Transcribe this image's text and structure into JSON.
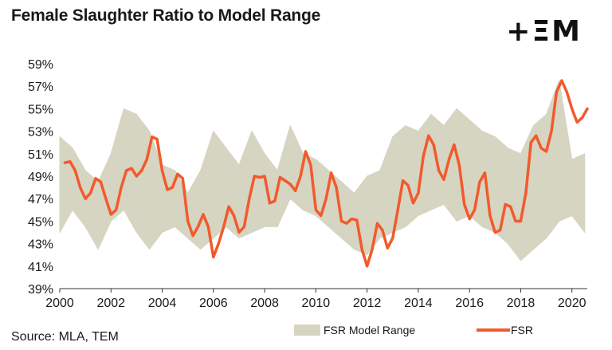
{
  "title": "Female Slaughter Ratio to Model Range",
  "logo_text": "+ΞM",
  "source": "Source: MLA, TEM",
  "colors": {
    "band": "#d6d5c2",
    "line": "#f25a2c",
    "axis": "#333333"
  },
  "chart_data": {
    "type": "line",
    "title": "Female Slaughter Ratio to Model Range",
    "xlabel": "",
    "ylabel": "",
    "xlim": [
      2000,
      2020.6
    ],
    "ylim": [
      39,
      59
    ],
    "x_ticks": [
      2000,
      2002,
      2004,
      2006,
      2008,
      2010,
      2012,
      2014,
      2016,
      2018,
      2020
    ],
    "x_tick_labels": [
      "2000",
      "2002",
      "2004",
      "2006",
      "2008",
      "2010",
      "2012",
      "2014",
      "2016",
      "2018",
      "2020"
    ],
    "y_ticks": [
      39,
      41,
      43,
      45,
      47,
      49,
      51,
      53,
      55,
      57,
      59
    ],
    "y_tick_labels": [
      "39%",
      "41%",
      "43%",
      "45%",
      "47%",
      "49%",
      "51%",
      "53%",
      "55%",
      "57%",
      "59%"
    ],
    "grid": false,
    "legend": {
      "placement": "bottom",
      "entries": [
        "FSR Model Range",
        "FSR"
      ]
    },
    "band": {
      "name": "FSR Model Range",
      "x": [
        2000.0,
        2000.5,
        2001.0,
        2001.5,
        2002.0,
        2002.5,
        2003.0,
        2003.5,
        2004.0,
        2004.5,
        2005.0,
        2005.5,
        2006.0,
        2006.5,
        2007.0,
        2007.5,
        2008.0,
        2008.5,
        2009.0,
        2009.5,
        2010.0,
        2010.5,
        2011.0,
        2011.5,
        2012.0,
        2012.5,
        2013.0,
        2013.5,
        2014.0,
        2014.5,
        2015.0,
        2015.5,
        2016.0,
        2016.5,
        2017.0,
        2017.5,
        2018.0,
        2018.5,
        2019.0,
        2019.5,
        2020.0,
        2020.5
      ],
      "upper": [
        52.5,
        51.5,
        49.5,
        48.5,
        51.0,
        55.0,
        54.5,
        53.0,
        50.0,
        49.5,
        47.5,
        49.5,
        53.0,
        51.5,
        50.0,
        53.0,
        51.0,
        49.5,
        53.5,
        51.0,
        50.5,
        49.5,
        48.5,
        47.5,
        49.0,
        49.5,
        52.5,
        53.5,
        53.0,
        54.5,
        53.5,
        55.0,
        54.0,
        53.0,
        52.5,
        51.5,
        51.0,
        53.5,
        54.5,
        57.5,
        50.5,
        51.0
      ],
      "lower": [
        44.0,
        46.0,
        44.5,
        42.5,
        45.0,
        46.0,
        44.0,
        42.5,
        44.0,
        44.5,
        43.5,
        42.5,
        43.5,
        44.5,
        43.5,
        44.0,
        44.5,
        44.5,
        47.0,
        46.0,
        45.5,
        44.5,
        43.5,
        42.5,
        42.0,
        43.5,
        44.0,
        44.5,
        45.5,
        46.0,
        46.5,
        45.0,
        45.5,
        44.5,
        44.0,
        43.0,
        41.5,
        42.5,
        43.5,
        45.0,
        45.5,
        44.0
      ]
    },
    "series": [
      {
        "name": "FSR",
        "x": [
          2000.2,
          2000.4,
          2000.6,
          2000.8,
          2001.0,
          2001.2,
          2001.4,
          2001.6,
          2001.8,
          2002.0,
          2002.2,
          2002.4,
          2002.6,
          2002.8,
          2003.0,
          2003.2,
          2003.4,
          2003.6,
          2003.8,
          2004.0,
          2004.2,
          2004.4,
          2004.6,
          2004.8,
          2005.0,
          2005.2,
          2005.4,
          2005.6,
          2005.8,
          2006.0,
          2006.2,
          2006.4,
          2006.6,
          2006.8,
          2007.0,
          2007.2,
          2007.4,
          2007.6,
          2007.8,
          2008.0,
          2008.2,
          2008.4,
          2008.6,
          2008.8,
          2009.0,
          2009.2,
          2009.4,
          2009.6,
          2009.8,
          2010.0,
          2010.2,
          2010.4,
          2010.6,
          2010.8,
          2011.0,
          2011.2,
          2011.4,
          2011.6,
          2011.8,
          2012.0,
          2012.2,
          2012.4,
          2012.6,
          2012.8,
          2013.0,
          2013.2,
          2013.4,
          2013.6,
          2013.8,
          2014.0,
          2014.2,
          2014.4,
          2014.6,
          2014.8,
          2015.0,
          2015.2,
          2015.4,
          2015.6,
          2015.8,
          2016.0,
          2016.2,
          2016.4,
          2016.6,
          2016.8,
          2017.0,
          2017.2,
          2017.4,
          2017.6,
          2017.8,
          2018.0,
          2018.2,
          2018.4,
          2018.6,
          2018.8,
          2019.0,
          2019.2,
          2019.4,
          2019.6,
          2019.8,
          2020.0,
          2020.2,
          2020.4,
          2020.6
        ],
        "values": [
          50.2,
          50.3,
          49.5,
          48.0,
          47.0,
          47.5,
          48.8,
          48.5,
          47.0,
          45.6,
          46.0,
          48.0,
          49.5,
          49.7,
          49.0,
          49.5,
          50.5,
          52.5,
          52.3,
          49.5,
          47.8,
          48.0,
          49.2,
          48.8,
          45.0,
          43.7,
          44.5,
          45.6,
          44.5,
          41.8,
          43.0,
          44.5,
          46.3,
          45.5,
          44.0,
          44.5,
          47.0,
          49.0,
          48.9,
          49.0,
          46.6,
          46.8,
          48.9,
          48.6,
          48.3,
          47.7,
          49.0,
          51.2,
          50.0,
          46.0,
          45.5,
          47.0,
          49.3,
          48.0,
          45.0,
          44.8,
          45.2,
          45.1,
          42.5,
          41.0,
          42.5,
          44.8,
          44.2,
          42.6,
          43.5,
          46.0,
          48.6,
          48.2,
          46.6,
          47.5,
          50.8,
          52.6,
          51.8,
          49.5,
          48.7,
          50.5,
          51.8,
          50.0,
          46.5,
          45.2,
          46.0,
          48.5,
          49.3,
          45.5,
          44.0,
          44.2,
          46.5,
          46.3,
          45.0,
          45.0,
          47.5,
          52.0,
          52.6,
          51.5,
          51.2,
          53.0,
          56.5,
          57.5,
          56.5,
          55.0,
          53.8,
          54.2,
          55.0
        ]
      }
    ]
  }
}
